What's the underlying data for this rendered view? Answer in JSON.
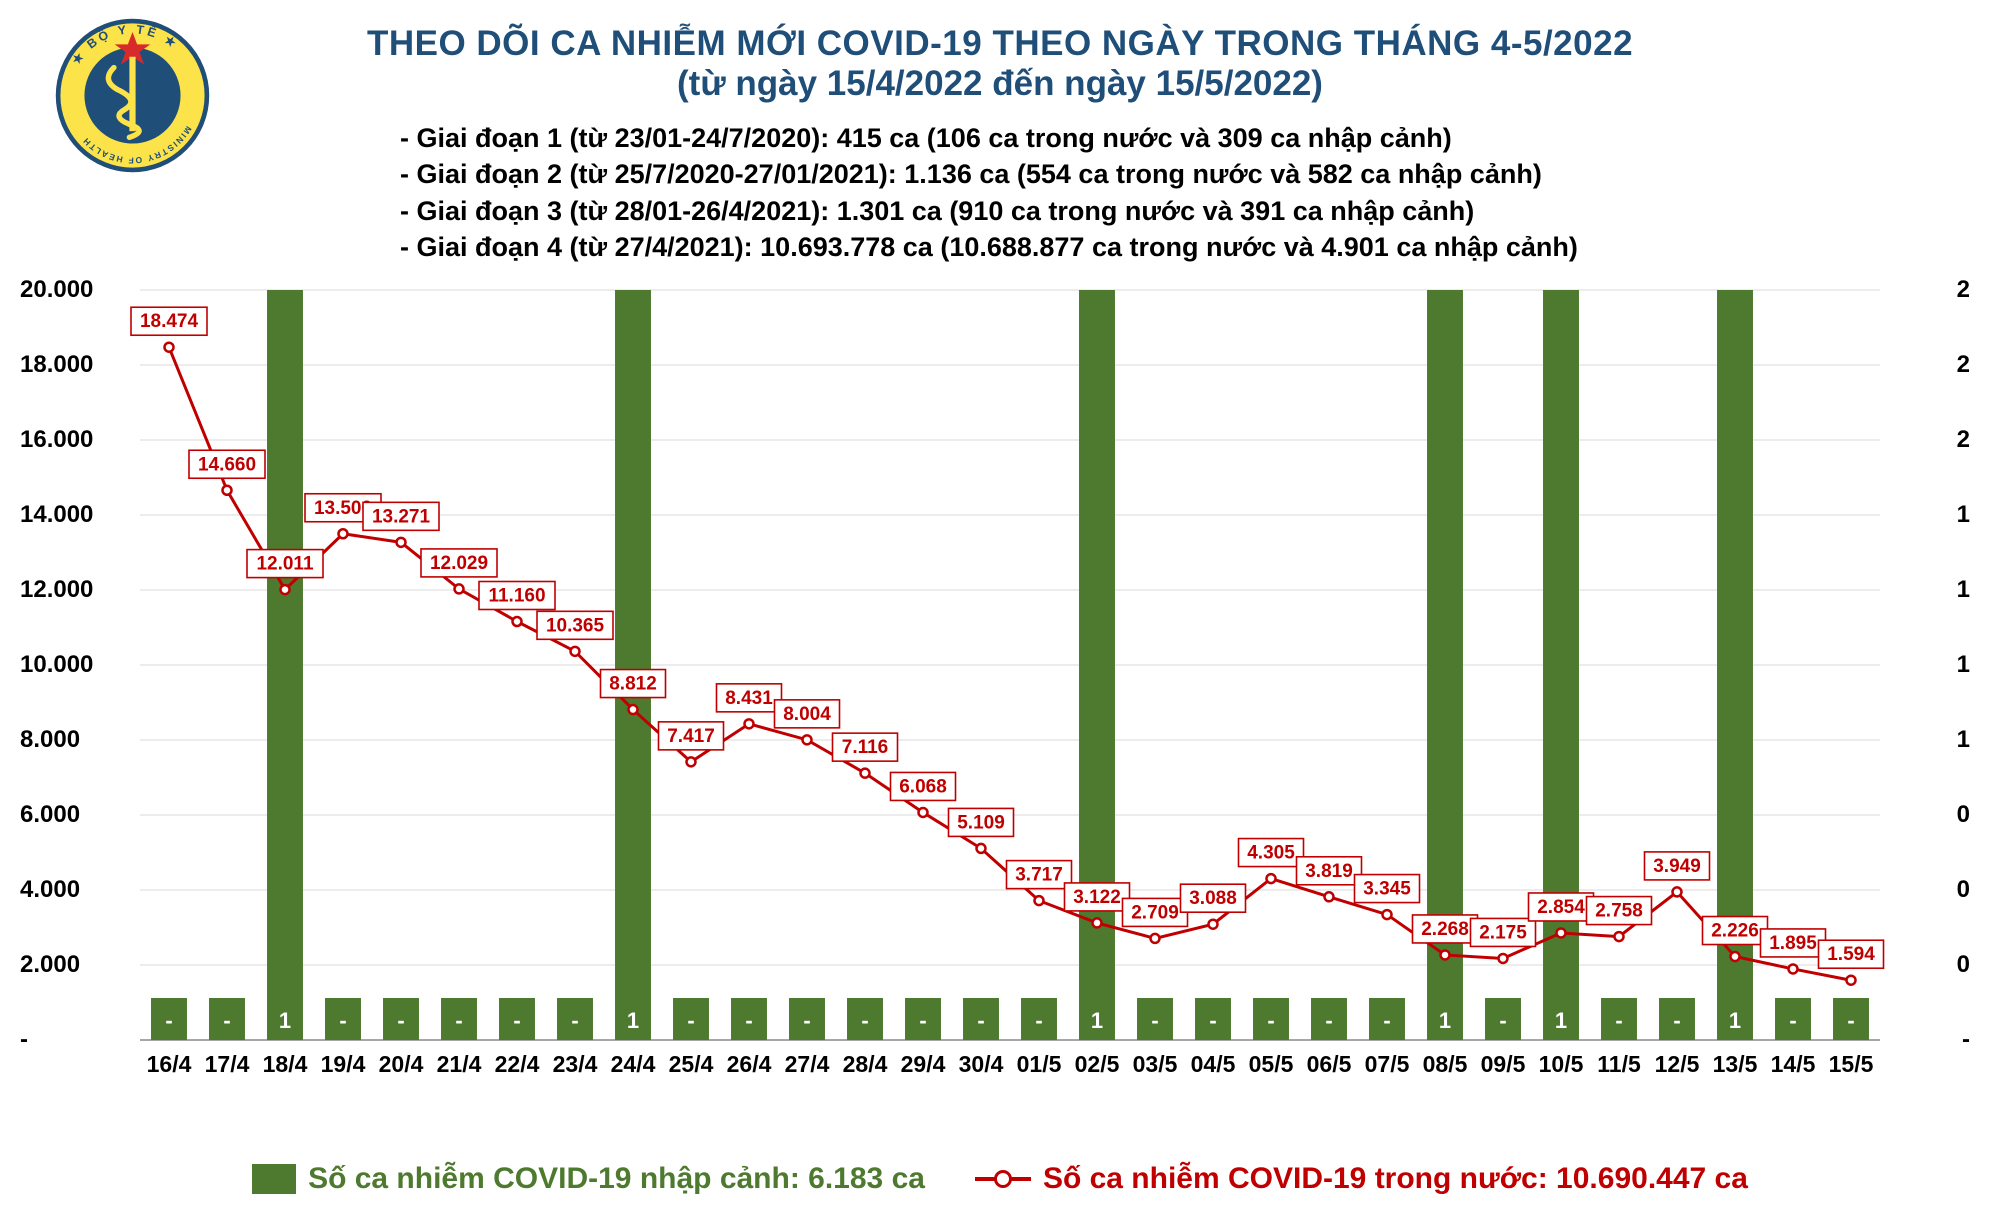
{
  "title": {
    "line1": "THEO DÕI CA NHIỄM MỚI COVID-19 THEO NGÀY TRONG THÁNG 4-5/2022",
    "line2": "(từ ngày 15/4/2022 đến ngày 15/5/2022)",
    "color": "#1f4e79",
    "fontsize": 35
  },
  "notes": [
    "- Giai đoạn 1 (từ 23/01-24/7/2020): 415 ca (106 ca trong nước và 309 ca nhập cảnh)",
    "- Giai đoạn 2 (từ 25/7/2020-27/01/2021): 1.136 ca (554 ca trong nước và 582 ca nhập cảnh)",
    "- Giai đoạn 3 (từ 28/01-26/4/2021): 1.301 ca (910 ca trong nước và 391 ca nhập cảnh)",
    "- Giai đoạn 4 (từ 27/4/2021): 10.693.778 ca (10.688.877 ca trong nước và 4.901 ca nhập cảnh)"
  ],
  "legend": {
    "bars_label": "Số ca nhiễm COVID-19 nhập cảnh: 6.183 ca",
    "line_label": "Số ca nhiễm COVID-19 trong nước: 10.690.447 ca"
  },
  "chart": {
    "type": "combo-bar-line",
    "background_color": "#ffffff",
    "grid_color": "#d9d9d9",
    "categories": [
      "16/4",
      "17/4",
      "18/4",
      "19/4",
      "20/4",
      "21/4",
      "22/4",
      "23/4",
      "24/4",
      "25/4",
      "26/4",
      "27/4",
      "28/4",
      "29/4",
      "30/4",
      "01/5",
      "02/5",
      "03/5",
      "04/5",
      "05/5",
      "06/5",
      "07/5",
      "08/5",
      "09/5",
      "10/5",
      "11/5",
      "12/5",
      "13/5",
      "14/5",
      "15/5"
    ],
    "line_series": {
      "name": "domestic",
      "color": "#c00000",
      "line_width": 3,
      "marker": "circle",
      "marker_size": 9,
      "marker_fill": "#ffffff",
      "values": [
        18474,
        14660,
        12011,
        13500,
        13271,
        12029,
        11160,
        10365,
        8812,
        7417,
        8431,
        8004,
        7116,
        6068,
        5109,
        3717,
        3122,
        2709,
        3088,
        4305,
        3819,
        3345,
        2268,
        2175,
        2854,
        2758,
        3949,
        2226,
        1895,
        1594
      ],
      "data_labels": [
        "18.474",
        "14.660",
        "12.011",
        "13.500",
        "13.271",
        "12.029",
        "11.160",
        "10.365",
        "8.812",
        "7.417",
        "8.431",
        "8.004",
        "7.116",
        "6.068",
        "5.109",
        "3.717",
        "3.122",
        "2.709",
        "3.088",
        "4.305",
        "3.819",
        "3.345",
        "2.268",
        "2.175",
        "2.854",
        "2.758",
        "3.949",
        "2.226",
        "1.895",
        "1.594"
      ],
      "label_bg": "#ffffff",
      "label_border": "#c00000",
      "label_color": "#c00000",
      "label_fontsize": 19
    },
    "bar_series": {
      "name": "imported",
      "color": "#4e7a2f",
      "bar_width": 0.62,
      "values": [
        0,
        0,
        1,
        0,
        0,
        0,
        0,
        0,
        1,
        0,
        0,
        0,
        0,
        0,
        0,
        0,
        1,
        0,
        0,
        0,
        0,
        0,
        1,
        0,
        1,
        0,
        0,
        1,
        0,
        0
      ],
      "data_labels": [
        "-",
        "-",
        "1",
        "-",
        "-",
        "-",
        "-",
        "-",
        "1",
        "-",
        "-",
        "-",
        "-",
        "-",
        "-",
        "-",
        "1",
        "-",
        "-",
        "-",
        "-",
        "-",
        "1",
        "-",
        "1",
        "-",
        "-",
        "1",
        "-",
        "-"
      ],
      "label_color": "#ffffff",
      "label_fontsize": 22
    },
    "y_left": {
      "min": 0,
      "max": 20000,
      "step": 2000,
      "tick_labels": [
        "-",
        "2.000",
        "4.000",
        "6.000",
        "8.000",
        "10.000",
        "12.000",
        "14.000",
        "16.000",
        "18.000",
        "20.000"
      ],
      "fontsize": 24
    },
    "y_right": {
      "min": 0,
      "max": 2,
      "step": 0.2,
      "tick_labels": [
        "-",
        "0",
        "0",
        "0",
        "1",
        "1",
        "1",
        "1",
        "2",
        "2",
        "2"
      ],
      "fontsize": 24
    },
    "x_axis": {
      "fontsize": 23,
      "color": "#000000"
    }
  },
  "logo": {
    "outer_color": "#1f4e79",
    "star_color": "#d82a2a",
    "bg": "#fde34a"
  }
}
